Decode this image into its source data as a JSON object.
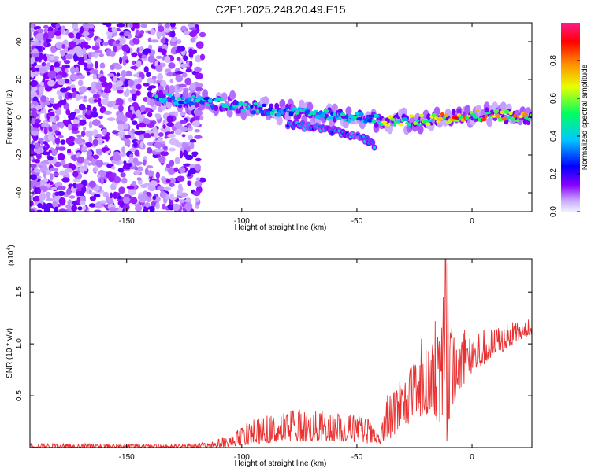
{
  "figure_title": "C2E1.2025.248.20.49.E15",
  "chart_data": [
    {
      "type": "heatmap",
      "xlabel": "Height of straight line (km)",
      "ylabel": "Frequency (Hz)",
      "xlim": [
        -192,
        26
      ],
      "ylim": [
        -50,
        50
      ],
      "x_ticks": [
        -150,
        -100,
        -50,
        0
      ],
      "y_ticks": [
        -40,
        -20,
        0,
        20,
        40
      ],
      "colorbar": {
        "label": "Normalized spectral amplitude",
        "range": [
          0,
          1
        ],
        "ticks": [
          0.0,
          0.2,
          0.4,
          0.6,
          0.8
        ],
        "colormap": [
          "#f0f0ff",
          "#8a00ff",
          "#0000ff",
          "#00c8ff",
          "#00ff60",
          "#e8ff00",
          "#ff9000",
          "#ff0000",
          "#ff1a8c"
        ]
      },
      "ridge": [
        {
          "x": -135,
          "y": 10
        },
        {
          "x": -120,
          "y": 9
        },
        {
          "x": -105,
          "y": 7
        },
        {
          "x": -90,
          "y": 4
        },
        {
          "x": -75,
          "y": 2
        },
        {
          "x": -60,
          "y": 1
        },
        {
          "x": -45,
          "y": -1
        },
        {
          "x": -30,
          "y": -2
        },
        {
          "x": -15,
          "y": -1
        },
        {
          "x": 0,
          "y": 1
        },
        {
          "x": 10,
          "y": 1
        },
        {
          "x": 25,
          "y": 0
        }
      ],
      "branch": [
        {
          "x": -78,
          "y": -4
        },
        {
          "x": -65,
          "y": -6
        },
        {
          "x": -55,
          "y": -9
        },
        {
          "x": -47,
          "y": -11
        },
        {
          "x": -42,
          "y": -15
        }
      ]
    },
    {
      "type": "line",
      "xlabel": "Height of straight line (km)",
      "ylabel": "SNR (10 * v/v)",
      "y_multiplier": "(x10",
      "y_multiplier_exp": "4",
      "y_multiplier_close": ")",
      "xlim": [
        -192,
        26
      ],
      "ylim": [
        0,
        1.82
      ],
      "x_ticks": [
        -150,
        -100,
        -50,
        0
      ],
      "y_ticks": [
        0.5,
        1.0,
        1.5
      ],
      "y_tick_labels": [
        "0.5",
        "1.0",
        "1.5"
      ],
      "color": "#e83030",
      "envelope": [
        {
          "x": -192,
          "lo": 0.0,
          "hi": 0.04
        },
        {
          "x": -170,
          "lo": 0.0,
          "hi": 0.04
        },
        {
          "x": -130,
          "lo": 0.0,
          "hi": 0.03
        },
        {
          "x": -115,
          "lo": 0.0,
          "hi": 0.05
        },
        {
          "x": -105,
          "lo": 0.01,
          "hi": 0.12
        },
        {
          "x": -95,
          "lo": 0.03,
          "hi": 0.28
        },
        {
          "x": -85,
          "lo": 0.05,
          "hi": 0.33
        },
        {
          "x": -75,
          "lo": 0.06,
          "hi": 0.38
        },
        {
          "x": -65,
          "lo": 0.06,
          "hi": 0.35
        },
        {
          "x": -55,
          "lo": 0.06,
          "hi": 0.34
        },
        {
          "x": -45,
          "lo": 0.04,
          "hi": 0.28
        },
        {
          "x": -40,
          "lo": 0.03,
          "hi": 0.1
        },
        {
          "x": -37,
          "lo": 0.05,
          "hi": 0.5
        },
        {
          "x": -30,
          "lo": 0.2,
          "hi": 0.7
        },
        {
          "x": -22,
          "lo": 0.3,
          "hi": 0.9
        },
        {
          "x": -17,
          "lo": 0.35,
          "hi": 1.05
        },
        {
          "x": -12,
          "lo": 0.1,
          "hi": 1.2
        },
        {
          "x": -6,
          "lo": 0.55,
          "hi": 1.2
        },
        {
          "x": 0,
          "lo": 0.7,
          "hi": 1.15
        },
        {
          "x": 8,
          "lo": 0.85,
          "hi": 1.15
        },
        {
          "x": 15,
          "lo": 0.95,
          "hi": 1.2
        },
        {
          "x": 26,
          "lo": 1.1,
          "hi": 1.24
        }
      ],
      "spikes": [
        {
          "x": -11.5,
          "y": 1.82
        },
        {
          "x": -10.5,
          "y": 1.78
        },
        {
          "x": -12.5,
          "y": 1.45
        },
        {
          "x": -11.0,
          "y": 0.06
        },
        {
          "x": -22,
          "y": 1.05
        },
        {
          "x": -16,
          "y": 1.22
        }
      ]
    }
  ]
}
